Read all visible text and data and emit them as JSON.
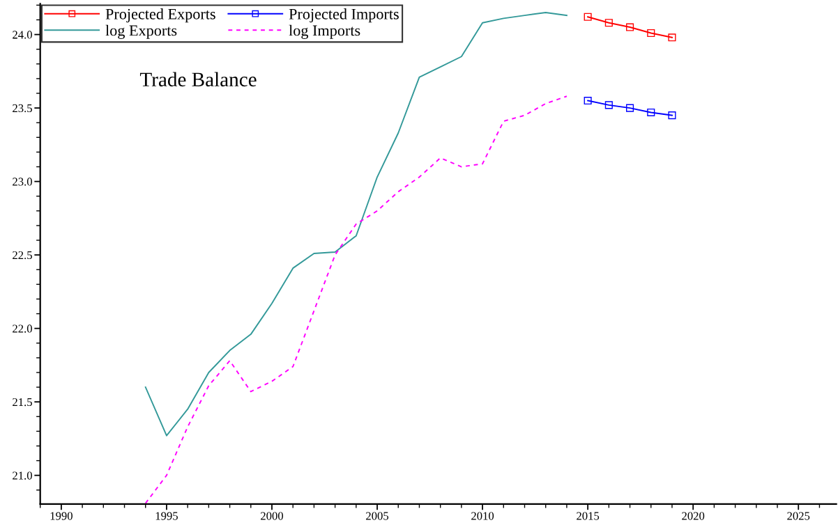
{
  "chart_data": {
    "type": "line",
    "annotations": [
      "Trade Balance"
    ],
    "xlim": [
      1989,
      2026.8
    ],
    "ylim": [
      20.805,
      24.21
    ],
    "xticks": [
      1990,
      1995,
      2000,
      2005,
      2010,
      2015,
      2020,
      2025
    ],
    "yticks": [
      {
        "value": 21,
        "label": "21.0"
      },
      {
        "value": 21.5,
        "label": "21.5"
      },
      {
        "value": 22,
        "label": "22.0"
      },
      {
        "value": 22.5,
        "label": "22.5"
      },
      {
        "value": 23,
        "label": "23.0"
      },
      {
        "value": 23.5,
        "label": "23.5"
      },
      {
        "value": 24,
        "label": "24.0"
      }
    ],
    "grid": false,
    "legend": "top left",
    "series": [
      {
        "name": "Projected Exports",
        "color": "#ff0000",
        "marker": "square",
        "line_style": "solid",
        "x": [
          2015,
          2016,
          2017,
          2018,
          2019
        ],
        "values": [
          24.12,
          24.08,
          24.05,
          24.01,
          23.98
        ]
      },
      {
        "name": "log Exports",
        "color": "#339999",
        "marker": "none",
        "line_style": "solid",
        "x": [
          1994,
          1995,
          1996,
          1997,
          1998,
          1999,
          2000,
          2001,
          2002,
          2003,
          2004,
          2005,
          2006,
          2007,
          2008,
          2009,
          2010,
          2011,
          2012,
          2013,
          2014
        ],
        "values": [
          21.6,
          21.27,
          21.45,
          21.7,
          21.85,
          21.96,
          22.17,
          22.41,
          22.51,
          22.52,
          22.63,
          23.03,
          23.33,
          23.71,
          23.78,
          23.85,
          24.08,
          24.11,
          24.13,
          24.15,
          24.13
        ]
      },
      {
        "name": "Projected Imports",
        "color": "#0000ff",
        "marker": "square",
        "line_style": "solid",
        "x": [
          2015,
          2016,
          2017,
          2018,
          2019
        ],
        "values": [
          23.55,
          23.52,
          23.5,
          23.47,
          23.45
        ]
      },
      {
        "name": "log Imports",
        "color": "#ff00ff",
        "marker": "none",
        "line_style": "dashed",
        "x": [
          1994,
          1995,
          1996,
          1997,
          1998,
          1999,
          2000,
          2001,
          2002,
          2003,
          2004,
          2005,
          2006,
          2007,
          2008,
          2009,
          2010,
          2011,
          2012,
          2013,
          2014
        ],
        "values": [
          20.81,
          21.0,
          21.33,
          21.61,
          21.78,
          21.57,
          21.64,
          21.74,
          22.12,
          22.5,
          22.71,
          22.8,
          22.93,
          23.03,
          23.16,
          23.1,
          23.12,
          23.41,
          23.45,
          23.53,
          23.58
        ]
      }
    ]
  }
}
